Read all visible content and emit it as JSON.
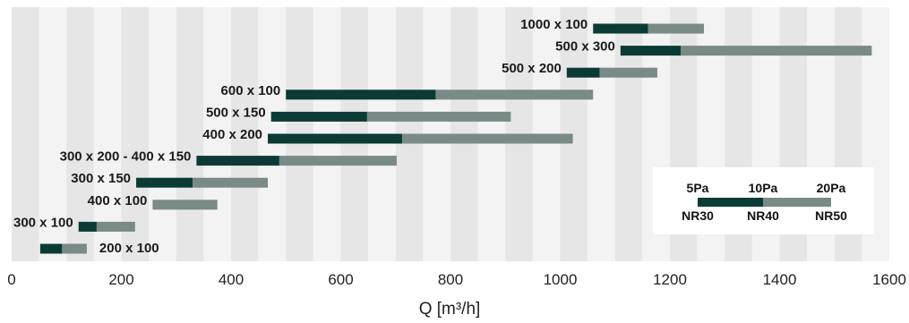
{
  "chart_data": {
    "type": "bar",
    "orientation": "horizontal-range",
    "xlabel": "Q [m³/h]",
    "xlim": [
      0,
      1600
    ],
    "x_ticks": [
      "0",
      "200",
      "400",
      "600",
      "800",
      "1000",
      "1200",
      "1400",
      "1600"
    ],
    "background": "alternating vertical bands (50 m³/h wide)",
    "grid": false,
    "colors": {
      "low": "#0b3b34",
      "high": "#7a8a86",
      "band_dark": "#e6e6e6",
      "band_light": "#f3f3f3"
    },
    "series_segments": [
      "dark segment",
      "light segment"
    ],
    "categories": [
      {
        "label": "1000 x 100",
        "start": 1060,
        "mid": 1160,
        "end": 1262
      },
      {
        "label": "500 x 300",
        "start": 1110,
        "mid": 1220,
        "end": 1568
      },
      {
        "label": "500 x 200",
        "start": 1012,
        "mid": 1072,
        "end": 1177
      },
      {
        "label": "600 x 100",
        "start": 500,
        "mid": 773,
        "end": 1060
      },
      {
        "label": "500 x 150",
        "start": 473,
        "mid": 648,
        "end": 910
      },
      {
        "label": "400 x 200",
        "start": 467,
        "mid": 712,
        "end": 1023
      },
      {
        "label": "300 x 200 - 400 x 150",
        "start": 337,
        "mid": 488,
        "end": 702
      },
      {
        "label": "300 x 150",
        "start": 227,
        "mid": 330,
        "end": 467
      },
      {
        "label": "400 x 100",
        "start": 257,
        "mid": 257,
        "end": 375
      },
      {
        "label": "300 x 100",
        "start": 122,
        "mid": 155,
        "end": 225
      },
      {
        "label": "200 x 100",
        "start": 52,
        "mid": 92,
        "end": 137
      }
    ],
    "legend": {
      "placement": "bottom-right",
      "top_labels": [
        "5Pa",
        "10Pa",
        "20Pa"
      ],
      "bottom_labels": [
        "NR30",
        "NR40",
        "NR50"
      ]
    }
  }
}
